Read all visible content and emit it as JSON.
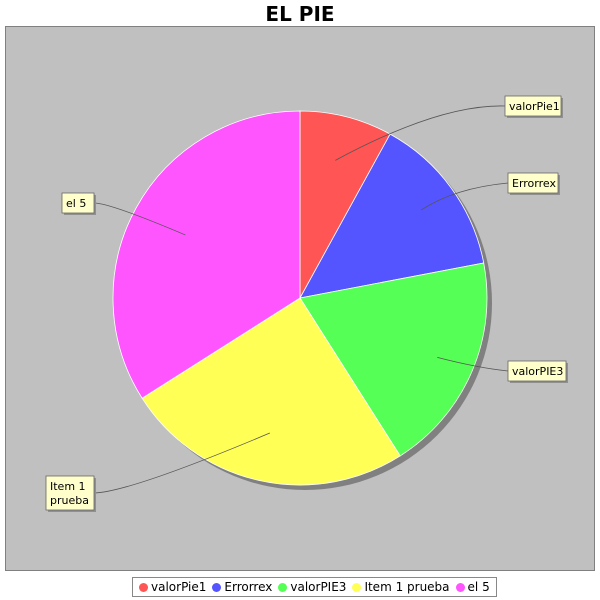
{
  "chart_data": {
    "type": "pie",
    "title": "EL PIE",
    "slices": [
      {
        "name": "valorPie1",
        "value": 8,
        "color": "#ff5555"
      },
      {
        "name": "Errorrex",
        "value": 14,
        "color": "#5555ff"
      },
      {
        "name": "valorPIE3",
        "value": 19,
        "color": "#55ff55"
      },
      {
        "name": "Item 1 prueba",
        "value": 25,
        "color": "#ffff55"
      },
      {
        "name": "el 5",
        "value": 34,
        "color": "#ff55ff"
      }
    ],
    "callout_labels": [
      "valorPie1",
      "Errorrex",
      "valorPIE3",
      "Item 1\nprueba",
      "el 5"
    ],
    "plot_background": "#c0c0c0",
    "label_background": "#ffffcc",
    "legend_placement": "bottom"
  }
}
